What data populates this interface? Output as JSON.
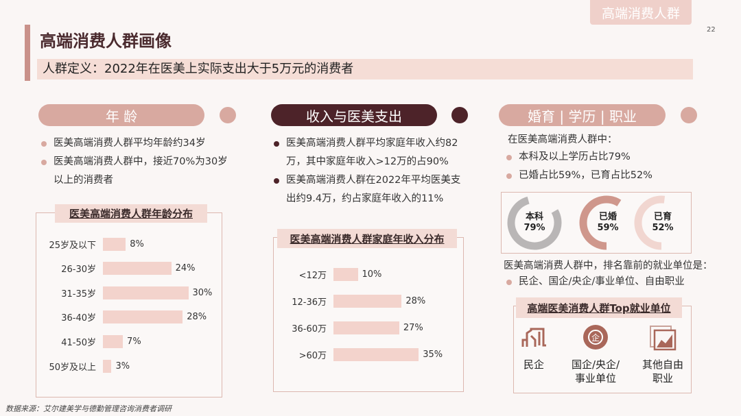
{
  "header": {
    "tag": "高端消费人群",
    "page_number": "22",
    "title": "高端消费人群画像",
    "definition": "人群定义：2022年在医美上实际支出大于5万元的消费者"
  },
  "colors": {
    "accent": "#d8a9a0",
    "dark": "#4d2329",
    "bar": "#f3d3cc",
    "grey": "#b9b6b6"
  },
  "age": {
    "pill": "年 龄",
    "bullets": [
      "医美高端消费人群平均年龄约34岁",
      "医美高端消费人群中，接近70%为30岁以上的消费者"
    ]
  },
  "income": {
    "pill": "收入与医美支出",
    "bullets": [
      "医美高端消费人群平均家庭年收入约82万，其中家庭年收入>12万的占90%",
      "医美高端消费人群在2022年平均医美支出约9.4万，约占家庭年收入的11%"
    ]
  },
  "marriage": {
    "pill": "婚育 | 学历 | 职业",
    "intro": "在医美高端消费人群中：",
    "bullets": [
      "本科及以上学历占比79%",
      "已婚占比59%，已育占比52%"
    ],
    "job_intro": "医美高端消费人群中，排名靠前的就业单位是：",
    "job_bullet": "民企、国企/央企/事业单位、自由职业",
    "job_box_title": "高端医美消费人群Top就业单位",
    "jobs": [
      {
        "label": "民企",
        "icon": "building-icon"
      },
      {
        "label": "国企/央企/事业单位",
        "icon": "enterprise-seal-icon"
      },
      {
        "label": "其他自由职业",
        "icon": "picture-frame-icon"
      }
    ]
  },
  "chart_data": [
    {
      "type": "bar",
      "orientation": "horizontal",
      "title": "医美高端消费人群年龄分布",
      "categories": [
        "25岁及以下",
        "26-30岁",
        "31-35岁",
        "36-40岁",
        "41-50岁",
        "50岁及以上"
      ],
      "values": [
        8,
        24,
        30,
        28,
        7,
        3
      ],
      "labels": [
        "8%",
        "24%",
        "30%",
        "28%",
        "7%",
        "3%"
      ],
      "unit": "%"
    },
    {
      "type": "bar",
      "orientation": "horizontal",
      "title": "医美高端消费人群家庭年收入分布",
      "categories": [
        "<12万",
        "12-36万",
        "36-60万",
        ">60万"
      ],
      "values": [
        10,
        28,
        27,
        35
      ],
      "labels": [
        "10%",
        "28%",
        "27%",
        "35%"
      ],
      "unit": "%"
    },
    {
      "type": "pie",
      "style": "donut",
      "items": [
        {
          "name": "本科",
          "value": 79,
          "label": "79%",
          "color": "#b9b6b6"
        },
        {
          "name": "已婚",
          "value": 59,
          "label": "59%",
          "color": "#cf978c"
        },
        {
          "name": "已育",
          "value": 52,
          "label": "52%",
          "color": "#f1d6d0"
        }
      ]
    }
  ],
  "footer": {
    "source": "数据来源：艾尔建美学与德勤管理咨询消费者调研"
  }
}
